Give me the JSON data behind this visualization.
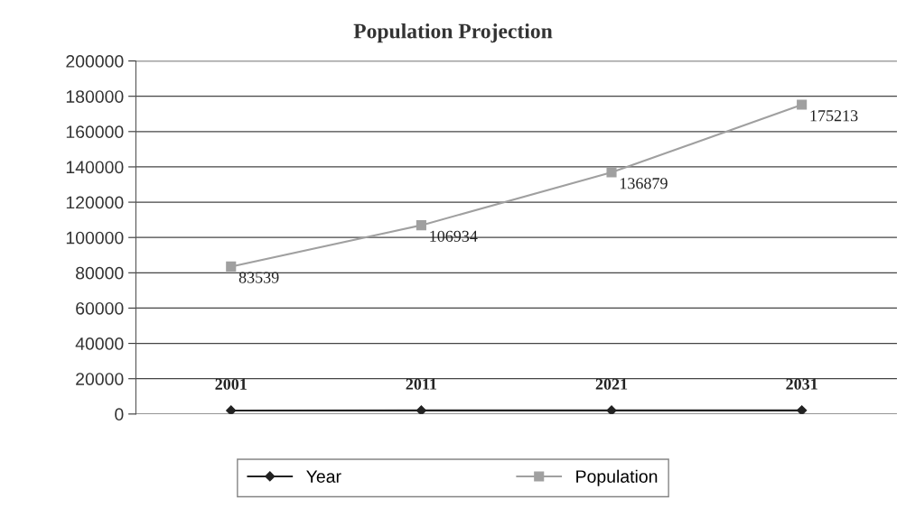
{
  "chart_data": {
    "type": "line",
    "title": "Population Projection",
    "categories": [
      null,
      null,
      null,
      null
    ],
    "series": [
      {
        "name": "Year",
        "color": "#222222",
        "marker": "diamond",
        "values": [
          2001,
          2011,
          2021,
          2031
        ]
      },
      {
        "name": "Population",
        "color": "#a0a0a0",
        "marker": "square",
        "values": [
          83539,
          106934,
          136879,
          175213
        ]
      }
    ],
    "ylim": [
      0,
      200000
    ],
    "yticks": [
      0,
      20000,
      40000,
      60000,
      80000,
      100000,
      120000,
      140000,
      160000,
      180000,
      200000
    ],
    "grid": "y",
    "legend": "bottom",
    "data_labels": true
  }
}
